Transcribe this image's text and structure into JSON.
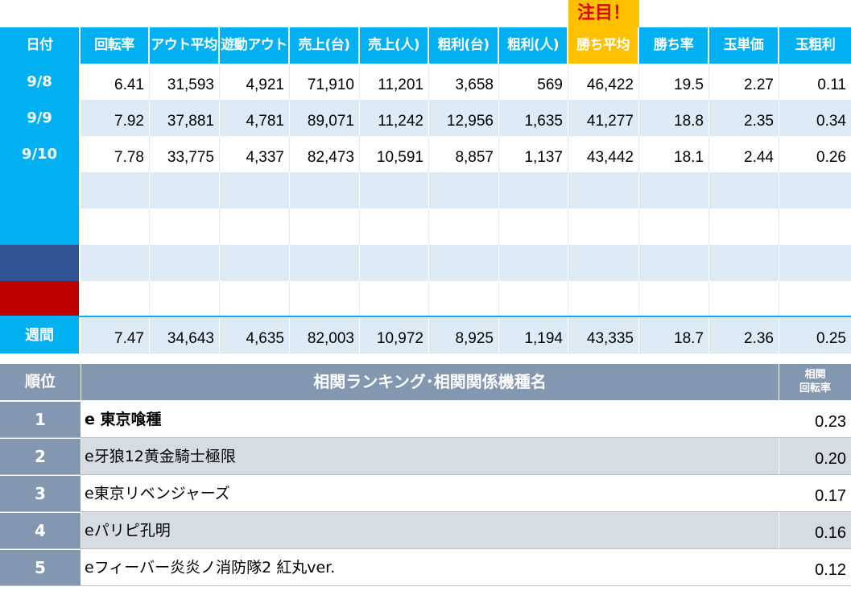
{
  "note_label": "注目！",
  "colors": {
    "header_blue": "#00b0f0",
    "highlight_orange": "#ffc000",
    "note_red": "#e00000",
    "row_blue_shade": "#ddebf7",
    "date_navy": "#2f5597",
    "date_red": "#c00000",
    "ranking_header": "#8497b0",
    "ranking_shade": "#d6dce4"
  },
  "stats": {
    "headers": [
      "日付",
      "回転率",
      "アウト平均",
      "遊動アウト",
      "売上(台)",
      "売上(人)",
      "粗利(台)",
      "粗利(人)",
      "勝ち平均",
      "勝ち率",
      "玉単価",
      "玉粗利"
    ],
    "rows": [
      {
        "date": "9/8",
        "values": [
          "6.41",
          "31,593",
          "4,921",
          "71,910",
          "11,201",
          "3,658",
          "569",
          "46,422",
          "19.5",
          "2.27",
          "0.11"
        ]
      },
      {
        "date": "9/9",
        "values": [
          "7.92",
          "37,881",
          "4,781",
          "89,071",
          "11,242",
          "12,956",
          "1,635",
          "41,277",
          "18.8",
          "2.35",
          "0.34"
        ]
      },
      {
        "date": "9/10",
        "values": [
          "7.78",
          "33,775",
          "4,337",
          "82,473",
          "10,591",
          "8,857",
          "1,137",
          "43,442",
          "18.1",
          "2.44",
          "0.26"
        ]
      },
      {
        "date": "",
        "values": [
          "",
          "",
          "",
          "",
          "",
          "",
          "",
          "",
          "",
          "",
          ""
        ]
      },
      {
        "date": "",
        "values": [
          "",
          "",
          "",
          "",
          "",
          "",
          "",
          "",
          "",
          "",
          ""
        ]
      },
      {
        "date": "",
        "values": [
          "",
          "",
          "",
          "",
          "",
          "",
          "",
          "",
          "",
          "",
          ""
        ]
      },
      {
        "date": "",
        "values": [
          "",
          "",
          "",
          "",
          "",
          "",
          "",
          "",
          "",
          "",
          ""
        ]
      }
    ],
    "weekly": {
      "date": "週間",
      "values": [
        "7.47",
        "34,643",
        "4,635",
        "82,003",
        "10,972",
        "8,925",
        "1,194",
        "43,335",
        "18.7",
        "2.36",
        "0.25"
      ]
    }
  },
  "ranking": {
    "header_rank": "順位",
    "header_name": "相関ランキング･相関関係機種名",
    "header_corr_line1": "相関",
    "header_corr_line2": "回転率",
    "items": [
      {
        "rank": "1",
        "name": "e 東京喰種",
        "corr": "0.23"
      },
      {
        "rank": "2",
        "name": "e牙狼12黄金騎士極限",
        "corr": "0.20"
      },
      {
        "rank": "3",
        "name": "e東京リベンジャーズ",
        "corr": "0.17"
      },
      {
        "rank": "4",
        "name": "eパリピ孔明",
        "corr": "0.16"
      },
      {
        "rank": "5",
        "name": "eフィーバー炎炎ノ消防隊2 紅丸ver.",
        "corr": "0.12"
      }
    ]
  }
}
